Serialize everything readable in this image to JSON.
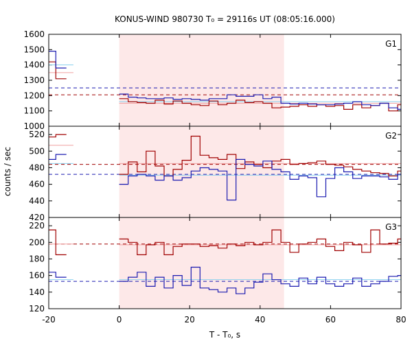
{
  "title": "KONUS-WIND 980730 T₀ = 29116s UT (08:05:16.000)",
  "colors": {
    "red": "#a00000",
    "blue": "#1a1ab0",
    "pink_fill": "#fde8e8",
    "light_red": "#f0a0a0",
    "light_blue": "#8ad0ee"
  },
  "chart_data": {
    "type": "line",
    "xlabel": "T - T₀, s",
    "ylabel": "counts / sec",
    "xlim": [
      -20,
      80
    ],
    "x_ticks": [
      -20,
      0,
      20,
      40,
      60,
      80
    ],
    "highlight_interval": [
      0,
      46.8
    ],
    "panels": [
      {
        "name": "G1",
        "ylim": [
          1000,
          1600
        ],
        "y_ticks": [
          1000,
          1100,
          1200,
          1300,
          1400,
          1500,
          1600
        ],
        "pre_step": {
          "x": [
            -20,
            -18,
            -15
          ],
          "red": [
            1420,
            1310
          ],
          "blue": [
            1490,
            1380
          ]
        },
        "pre_fit": {
          "red": 1350,
          "blue": 1400
        },
        "main_step_x": [
          0,
          2.55,
          5.1,
          7.65,
          10.2,
          12.75,
          15.3,
          17.85,
          20.4,
          22.95,
          25.5,
          28.05,
          30.6,
          33.15,
          35.7,
          38.25,
          40.8,
          43.35,
          45.9,
          48.45,
          51.0,
          53.55,
          56.1,
          58.65,
          61.2,
          63.75,
          66.3,
          68.85,
          71.4,
          73.95,
          76.5,
          79.05,
          80
        ],
        "red_main": [
          1180,
          1160,
          1155,
          1150,
          1170,
          1145,
          1165,
          1150,
          1140,
          1135,
          1165,
          1140,
          1150,
          1170,
          1155,
          1160,
          1150,
          1120,
          1125,
          1130,
          1140,
          1130,
          1140,
          1130,
          1135,
          1110,
          1140,
          1120,
          1135,
          1150,
          1100,
          1140
        ],
        "blue_main": [
          1210,
          1190,
          1185,
          1180,
          1180,
          1185,
          1175,
          1180,
          1175,
          1170,
          1180,
          1180,
          1205,
          1195,
          1195,
          1205,
          1180,
          1190,
          1150,
          1145,
          1150,
          1145,
          1140,
          1140,
          1145,
          1150,
          1160,
          1140,
          1135,
          1150,
          1120,
          1110
        ],
        "red_dashed": 1205,
        "blue_dashed": 1250,
        "fit_light_red": 1150,
        "fit_light_blue": 1160
      },
      {
        "name": "G2",
        "ylim": [
          420,
          530
        ],
        "y_ticks": [
          420,
          440,
          460,
          480,
          500,
          520
        ],
        "pre_step": {
          "x": [
            -20,
            -18,
            -15
          ],
          "red": [
            517,
            520
          ],
          "blue": [
            490,
            496
          ]
        },
        "pre_fit": {
          "red": 507,
          "blue": 485
        },
        "main_step_x": [
          0,
          2.55,
          5.1,
          7.65,
          10.2,
          12.75,
          15.3,
          17.85,
          20.4,
          22.95,
          25.5,
          28.05,
          30.6,
          33.15,
          35.7,
          38.25,
          40.8,
          43.35,
          45.9,
          48.45,
          51.0,
          53.55,
          56.1,
          58.65,
          61.2,
          63.75,
          66.3,
          68.85,
          71.4,
          73.95,
          76.5,
          79.05,
          80
        ],
        "red_main": [
          472,
          487,
          475,
          500,
          482,
          470,
          478,
          489,
          518,
          495,
          492,
          490,
          496,
          479,
          487,
          484,
          480,
          488,
          490,
          484,
          485,
          486,
          488,
          484,
          483,
          481,
          478,
          476,
          474,
          473,
          470,
          476
        ],
        "blue_main": [
          460,
          470,
          472,
          470,
          465,
          470,
          465,
          468,
          476,
          480,
          478,
          476,
          441,
          490,
          484,
          482,
          488,
          478,
          475,
          466,
          470,
          468,
          445,
          467,
          480,
          475,
          467,
          470,
          470,
          469,
          466,
          472
        ],
        "red_dashed": 484,
        "blue_dashed": 472,
        "fit_light_red": 485,
        "fit_light_blue": 471
      },
      {
        "name": "G3",
        "ylim": [
          120,
          230
        ],
        "y_ticks": [
          120,
          140,
          160,
          180,
          200,
          220
        ],
        "pre_step": {
          "x": [
            -20,
            -18,
            -15
          ],
          "red": [
            215,
            185
          ],
          "blue": [
            164,
            158
          ]
        },
        "pre_fit": {
          "red": 198,
          "blue": 155
        },
        "main_step_x": [
          0,
          2.55,
          5.1,
          7.65,
          10.2,
          12.75,
          15.3,
          17.85,
          20.4,
          22.95,
          25.5,
          28.05,
          30.6,
          33.15,
          35.7,
          38.25,
          40.8,
          43.35,
          45.9,
          48.45,
          51.0,
          53.55,
          56.1,
          58.65,
          61.2,
          63.75,
          66.3,
          68.85,
          71.4,
          73.95,
          76.5,
          79.05,
          80
        ],
        "red_main": [
          204,
          200,
          185,
          197,
          200,
          185,
          195,
          198,
          198,
          195,
          196,
          193,
          198,
          196,
          200,
          197,
          200,
          215,
          200,
          188,
          198,
          200,
          204,
          195,
          190,
          200,
          197,
          188,
          215,
          198,
          199,
          204
        ],
        "blue_main": [
          153,
          158,
          164,
          147,
          158,
          145,
          160,
          148,
          170,
          145,
          143,
          140,
          145,
          138,
          145,
          152,
          162,
          155,
          150,
          147,
          157,
          150,
          158,
          150,
          147,
          150,
          157,
          147,
          150,
          153,
          159,
          160
        ],
        "red_dashed": 198,
        "blue_dashed": 153,
        "fit_light_red": 197,
        "fit_light_blue": 155
      }
    ]
  }
}
